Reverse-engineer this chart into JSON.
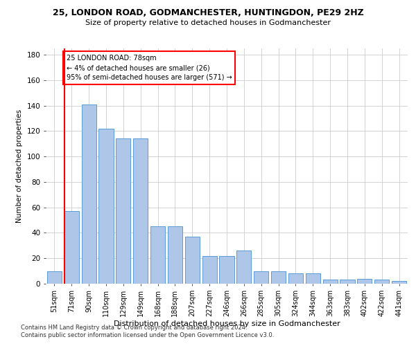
{
  "title1": "25, LONDON ROAD, GODMANCHESTER, HUNTINGDON, PE29 2HZ",
  "title2": "Size of property relative to detached houses in Godmanchester",
  "xlabel": "Distribution of detached houses by size in Godmanchester",
  "ylabel": "Number of detached properties",
  "categories": [
    "51sqm",
    "71sqm",
    "90sqm",
    "110sqm",
    "129sqm",
    "149sqm",
    "168sqm",
    "188sqm",
    "207sqm",
    "227sqm",
    "246sqm",
    "266sqm",
    "285sqm",
    "305sqm",
    "324sqm",
    "344sqm",
    "363sqm",
    "383sqm",
    "402sqm",
    "422sqm",
    "441sqm"
  ],
  "values": [
    10,
    57,
    141,
    122,
    114,
    114,
    45,
    45,
    37,
    22,
    22,
    26,
    10,
    10,
    8,
    8,
    3,
    3,
    4,
    3,
    2
  ],
  "bar_color": "#aec6e8",
  "bar_edge_color": "#5b9bd5",
  "annotation_text": "25 LONDON ROAD: 78sqm\n← 4% of detached houses are smaller (26)\n95% of semi-detached houses are larger (571) →",
  "annotation_box_color": "white",
  "annotation_box_edge": "red",
  "vline_color": "red",
  "vline_x_index": 1,
  "ylim": [
    0,
    185
  ],
  "yticks": [
    0,
    20,
    40,
    60,
    80,
    100,
    120,
    140,
    160,
    180
  ],
  "grid_color": "#cccccc",
  "background_color": "white",
  "footer1": "Contains HM Land Registry data © Crown copyright and database right 2024.",
  "footer2": "Contains public sector information licensed under the Open Government Licence v3.0."
}
